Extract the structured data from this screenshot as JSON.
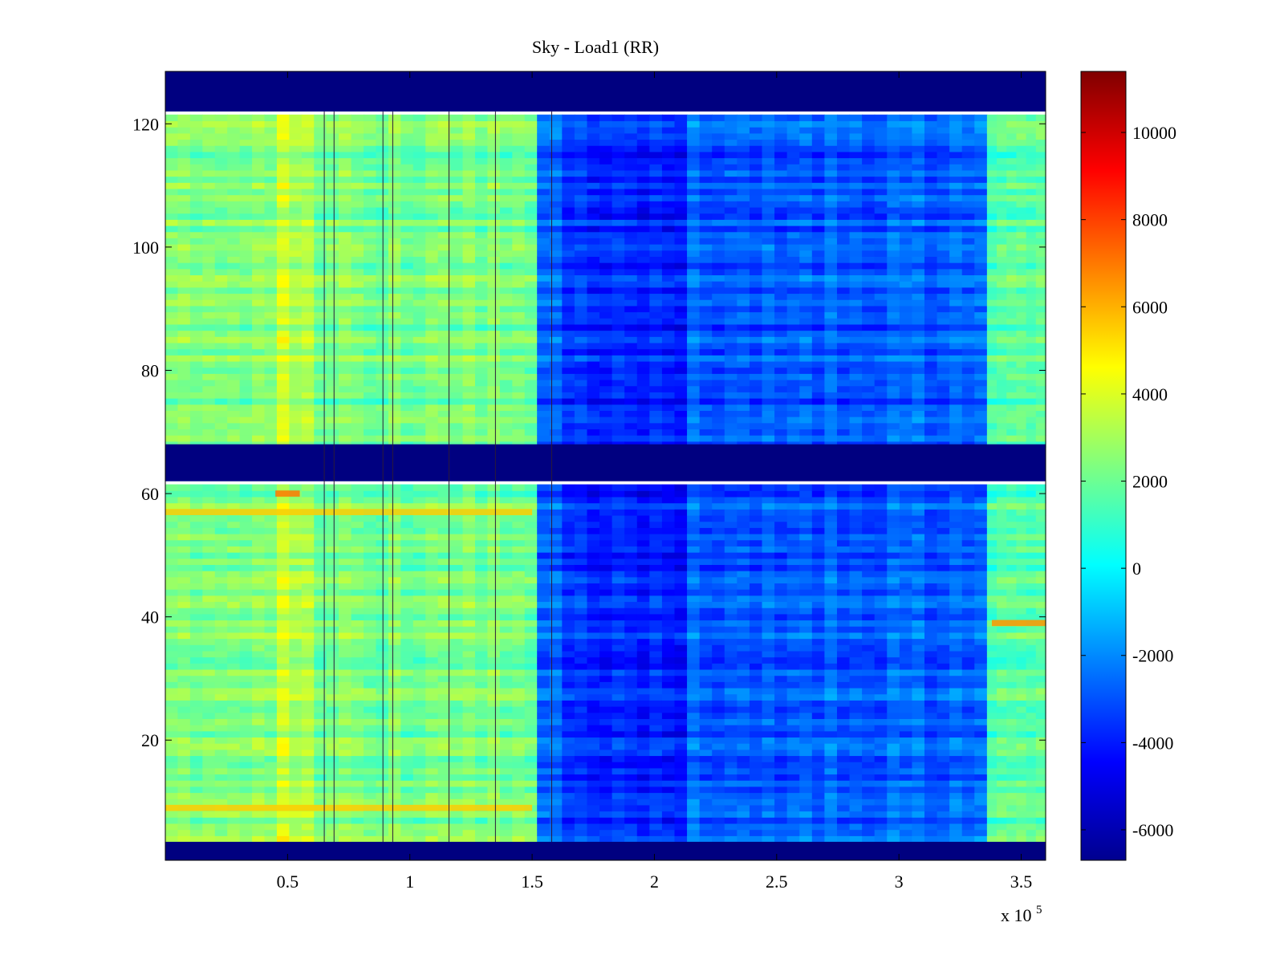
{
  "chart_data": {
    "type": "heatmap",
    "title": "Sky - Load1 (RR)",
    "xlabel": "",
    "ylabel": "",
    "x_exponent_label": "x 10",
    "x_exponent_power": "5",
    "xlim": [
      0,
      3.6
    ],
    "ylim": [
      0.5,
      128.5
    ],
    "x_ticks": [
      0.5,
      1,
      1.5,
      2,
      2.5,
      3,
      3.5
    ],
    "x_tick_labels": [
      "0.5",
      "1",
      "1.5",
      "2",
      "2.5",
      "3",
      "3.5"
    ],
    "y_ticks": [
      20,
      40,
      60,
      80,
      100,
      120
    ],
    "y_tick_labels": [
      "20",
      "40",
      "60",
      "80",
      "100",
      "120"
    ],
    "colormap": "jet",
    "clim": [
      -6700,
      11400
    ],
    "colorbar_ticks": [
      -6000,
      -4000,
      -2000,
      0,
      2000,
      4000,
      6000,
      8000,
      10000
    ],
    "colorbar_tick_labels": [
      "-6000",
      "-4000",
      "-2000",
      "0",
      "2000",
      "4000",
      "6000",
      "8000",
      "10000"
    ],
    "empty_row_bands": [
      [
        0.5,
        3.5
      ],
      [
        62,
        68
      ],
      [
        122,
        128.5
      ]
    ],
    "empty_value": -6700,
    "regions": [
      {
        "x_range": [
          0,
          1.52
        ],
        "mean_value": 2200,
        "description": "high"
      },
      {
        "x_range": [
          1.52,
          3.36
        ],
        "mean_value": -2800,
        "description": "low"
      },
      {
        "x_range": [
          3.36,
          3.6
        ],
        "mean_value": 1500,
        "description": "recovery"
      }
    ],
    "hot_rows": [
      {
        "row": 9,
        "x_range": [
          0,
          1.5
        ],
        "value": 5500
      },
      {
        "row": 57,
        "x_range": [
          0,
          1.5
        ],
        "value": 5500
      },
      {
        "row": 39,
        "x_range": [
          3.38,
          3.6
        ],
        "value": 6500
      },
      {
        "row": 60,
        "x_range": [
          0.45,
          0.55
        ],
        "value": 7000
      }
    ],
    "dark_vertical_lines_x": [
      0.65,
      0.69,
      0.89,
      0.93,
      1.16,
      1.35,
      1.58
    ],
    "colors": {
      "axes": "#000000",
      "background": "#ffffff",
      "empty_band": "#00008f"
    }
  }
}
